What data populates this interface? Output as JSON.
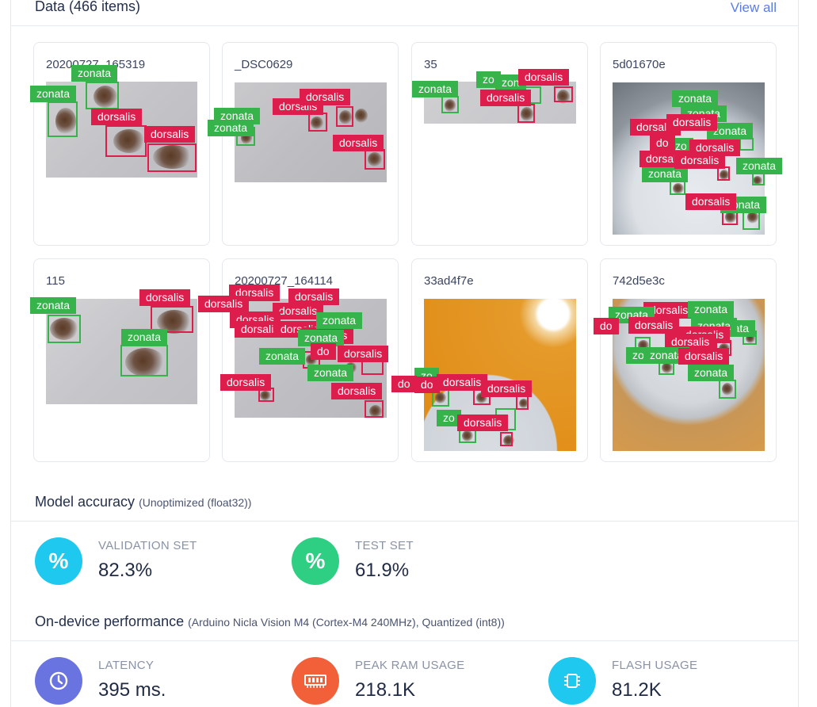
{
  "header": {
    "title": "Data (466 items)",
    "view_all": "View all"
  },
  "tag_colors": {
    "dorsalis": "#dd1e4d",
    "zonata": "#36b34a"
  },
  "samples": [
    {
      "name": "20200727_165319",
      "labels": [
        "zonata",
        "zonata",
        "dorsalis",
        "dorsalis"
      ]
    },
    {
      "name": "_DSC0629",
      "labels": [
        "zonata",
        "zonata",
        "dorsalis",
        "dorsalis",
        "dorsalis"
      ]
    },
    {
      "name": "35",
      "labels": [
        "zonata",
        "zo",
        "zon",
        "dorsalis",
        "dorsalis"
      ]
    },
    {
      "name": "5d01670e",
      "labels": [
        "zonata",
        "zonata",
        "zonata",
        "zonata",
        "zo",
        "zonata",
        "zonata",
        "dorsalis",
        "do",
        "dorsalis",
        "dorsalis",
        "dorsalis",
        "dorsalis",
        "dorsalis"
      ]
    },
    {
      "name": "115",
      "labels": [
        "zonata",
        "dorsalis",
        "zonata"
      ]
    },
    {
      "name": "20200727_164114",
      "labels": [
        "dorsalis",
        "dorsalis",
        "dorsalis",
        "dorsalis",
        "dorsalis",
        "dorsalis",
        "dorsalis",
        "dorsalis",
        "zonata",
        "zonata",
        "zonata",
        "dorsalis",
        "do",
        "dorsalis",
        "zonata",
        "dorsalis"
      ]
    },
    {
      "name": "33ad4f7e",
      "labels": [
        "do",
        "do",
        "dorsalis",
        "dorsalis",
        "zo",
        "dorsalis"
      ]
    },
    {
      "name": "742d5e3c",
      "labels": [
        "zonata",
        "zonata",
        "dorsalis",
        "zonata",
        "zonata",
        "do",
        "dorsalis",
        "dorsalis",
        "dorsalis",
        "zo",
        "zonata",
        "dorsalis",
        "zonata"
      ]
    }
  ],
  "accuracy": {
    "title": "Model accuracy",
    "subtitle": "(Unoptimized (float32))",
    "validation": {
      "label": "VALIDATION SET",
      "value": "82.3%",
      "icon": "percent-icon",
      "color": "#1ec8ee"
    },
    "test": {
      "label": "TEST SET",
      "value": "61.9%",
      "icon": "percent-icon",
      "color": "#2ecf82"
    }
  },
  "performance": {
    "title": "On-device performance",
    "subtitle": "(Arduino Nicla Vision M4 (Cortex-M4 240MHz), Quantized (int8))",
    "latency": {
      "label": "LATENCY",
      "value": "395 ms.",
      "icon": "clock-icon",
      "color": "#6a74e0"
    },
    "ram": {
      "label": "PEAK RAM USAGE",
      "value": "218.1K",
      "icon": "memory-icon",
      "color": "#f2603a"
    },
    "flash": {
      "label": "FLASH USAGE",
      "value": "81.2K",
      "icon": "chip-icon",
      "color": "#1ec8ee"
    }
  }
}
